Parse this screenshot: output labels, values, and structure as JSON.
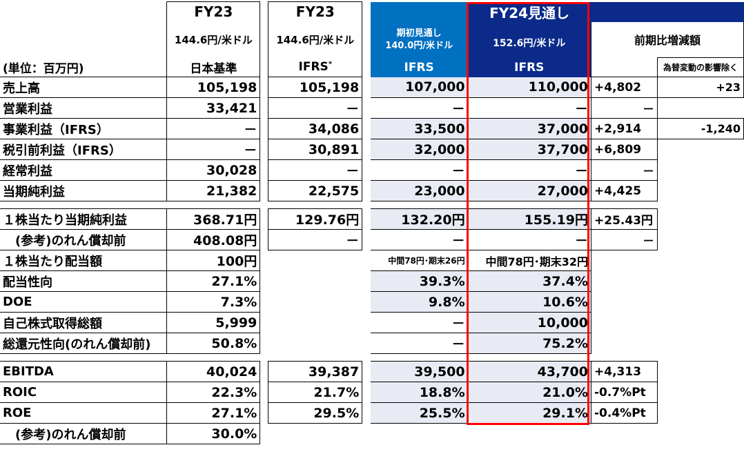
{
  "header": {
    "unit": "(単位：百万円)",
    "fy23_jp": {
      "title": "FY23",
      "rate": "144.6円/米ドル",
      "standard": "日本基準"
    },
    "fy23_ifrs": {
      "title": "FY23",
      "rate": "144.6円/米ドル",
      "standard": "IFRS",
      "note_mark": "*"
    },
    "fy24_initial": {
      "label": "期初見通し",
      "rate": "140.0円/米ドル",
      "standard": "IFRS"
    },
    "fy24_current": {
      "title": "FY24見通し",
      "rate": "152.6円/米ドル",
      "standard": "IFRS"
    },
    "yoy": {
      "title": "前期比増減額",
      "fx_effect": "為替変動の影響除く"
    }
  },
  "rows": [
    {
      "label": "売上高",
      "fy23_jp": "105,198",
      "fy23_ifrs": "105,198",
      "initial": "107,000",
      "current": "110,000",
      "delta": "+4,802",
      "fx": "+23"
    },
    {
      "label": "営業利益",
      "fy23_jp": "33,421",
      "fy23_ifrs": "－",
      "initial": "－",
      "current": "－",
      "delta": "－",
      "fx": ""
    },
    {
      "label": "事業利益（IFRS）",
      "fy23_jp": "－",
      "fy23_ifrs": "34,086",
      "initial": "33,500",
      "current": "37,000",
      "delta": "+2,914",
      "fx": "-1,240"
    },
    {
      "label": "税引前利益（IFRS）",
      "fy23_jp": "－",
      "fy23_ifrs": "30,891",
      "initial": "32,000",
      "current": "37,700",
      "delta": "+6,809",
      "fx": ""
    },
    {
      "label": "経常利益",
      "fy23_jp": "30,028",
      "fy23_ifrs": "－",
      "initial": "－",
      "current": "－",
      "delta": "－",
      "fx": ""
    },
    {
      "label": "当期純利益",
      "fy23_jp": "21,382",
      "fy23_ifrs": "22,575",
      "initial": "23,000",
      "current": "27,000",
      "delta": "+4,425",
      "fx": ""
    },
    {
      "label": "１株当たり当期純利益",
      "fy23_jp": "368.71円",
      "fy23_ifrs": "129.76円",
      "initial": "132.20円",
      "current": "155.19円",
      "delta": "+25.43円",
      "fx": ""
    },
    {
      "label": "(参考)のれん償却前",
      "fy23_jp": "408.08円",
      "fy23_ifrs": "－",
      "initial": "－",
      "current": "－",
      "delta": "－",
      "fx": ""
    },
    {
      "label": "１株当たり配当額",
      "fy23_jp": "100円",
      "fy23_ifrs": "",
      "initial": "中間78円･期末26円",
      "current": "中間78円･期末32円",
      "delta": "",
      "fx": ""
    },
    {
      "label": "配当性向",
      "fy23_jp": "27.1%",
      "fy23_ifrs": "",
      "initial": "39.3%",
      "current": "37.4%",
      "delta": "",
      "fx": ""
    },
    {
      "label": "DOE",
      "fy23_jp": "7.3%",
      "fy23_ifrs": "",
      "initial": "9.8%",
      "current": "10.6%",
      "delta": "",
      "fx": ""
    },
    {
      "label": "自己株式取得総額",
      "fy23_jp": "5,999",
      "fy23_ifrs": "",
      "initial": "－",
      "current": "10,000",
      "delta": "",
      "fx": ""
    },
    {
      "label": "総還元性向(のれん償却前)",
      "fy23_jp": "50.8%",
      "fy23_ifrs": "",
      "initial": "－",
      "current": "75.2%",
      "delta": "",
      "fx": ""
    },
    {
      "label": "EBITDA",
      "fy23_jp": "40,024",
      "fy23_ifrs": "39,387",
      "initial": "39,500",
      "current": "43,700",
      "delta": "+4,313",
      "fx": ""
    },
    {
      "label": "ROIC",
      "fy23_jp": "22.3%",
      "fy23_ifrs": "21.7%",
      "initial": "18.8%",
      "current": "21.0%",
      "delta": "-0.7%Pt",
      "fx": ""
    },
    {
      "label": "ROE",
      "fy23_jp": "27.1%",
      "fy23_ifrs": "29.5%",
      "initial": "25.5%",
      "current": "29.1%",
      "delta": "-0.4%Pt",
      "fx": ""
    },
    {
      "label": "(参考)のれん償却前",
      "fy23_jp": "30.0%",
      "fy23_ifrs": "",
      "initial": "",
      "current": "",
      "delta": "",
      "fx": ""
    }
  ],
  "colors": {
    "accent_blue": "#0070c0",
    "navy": "#0b2a8a",
    "highlight_frame": "#ff0000",
    "shade": "#e8ebf4"
  }
}
